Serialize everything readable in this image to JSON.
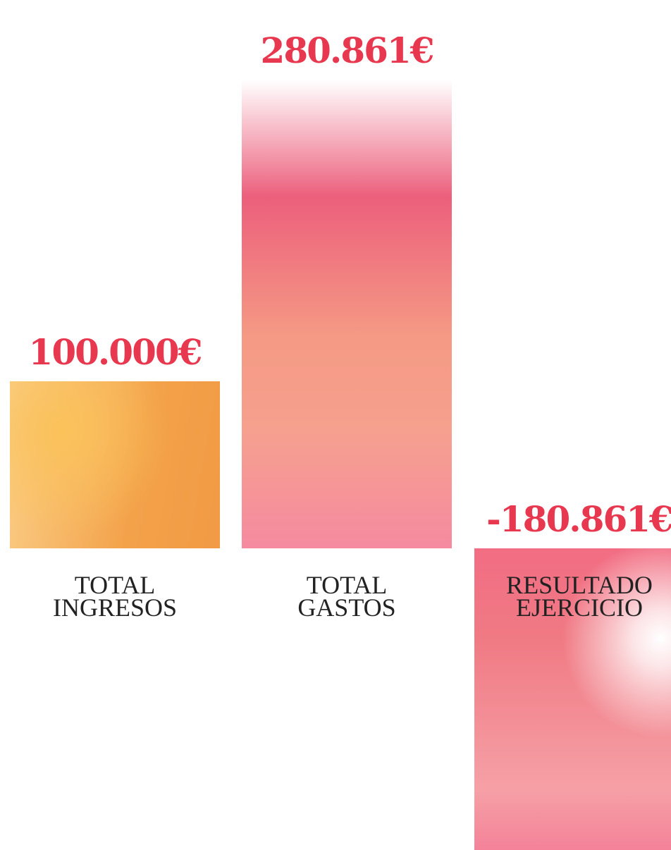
{
  "chart_data": {
    "type": "bar",
    "categories": [
      "TOTAL INGRESOS",
      "TOTAL GASTOS",
      "RESULTADO EJERCICIO"
    ],
    "values": [
      100000,
      280861,
      -180861
    ],
    "value_labels": [
      "100.000€",
      "280.861€",
      "-180.861€"
    ],
    "colors": [
      "#f3a24a",
      "#ec5f7c",
      "#f07a84"
    ],
    "label_color": "#e8384f"
  }
}
